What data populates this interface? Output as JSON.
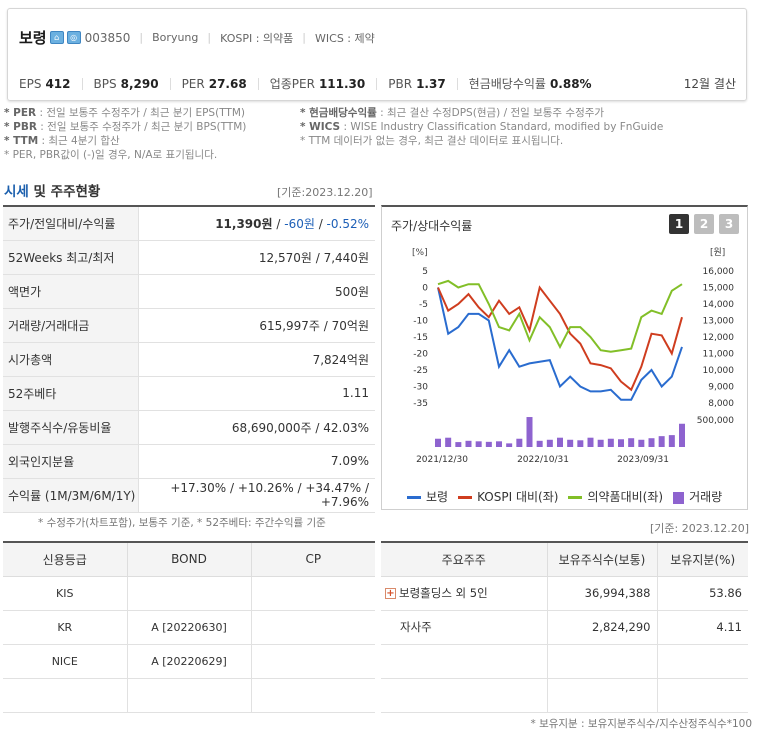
{
  "company": {
    "name": "보령",
    "code": "003850",
    "eng_name": "Boryung",
    "market": "KOSPI : 의약품",
    "wics": "WICS : 제약"
  },
  "metrics": [
    {
      "key": "EPS",
      "value": "412"
    },
    {
      "key": "BPS",
      "value": "8,290"
    },
    {
      "key": "PER",
      "value": "27.68"
    },
    {
      "key": "업종PER",
      "value": "111.30"
    },
    {
      "key": "PBR",
      "value": "1.37"
    },
    {
      "key": "현금배당수익률",
      "value": "0.88%"
    }
  ],
  "settlement": "12월 결산",
  "notes_left": [
    {
      "b": "* PER",
      "t": ": 전일 보통주 수정주가 / 최근 분기 EPS(TTM)"
    },
    {
      "b": "* PBR",
      "t": ": 전일 보통주 수정주가 / 최근 분기 BPS(TTM)"
    },
    {
      "b": "* TTM",
      "t": ": 최근 4분기 합산"
    },
    {
      "b": "",
      "t": "* PER, PBR값이 (-)일 경우, N/A로 표기됩니다."
    }
  ],
  "notes_right": [
    {
      "b": "* 현금배당수익률",
      "t": ": 최근 결산 수정DPS(현금) / 전일 보통주 수정주가"
    },
    {
      "b": "* WICS",
      "t": ": WISE Industry Classification Standard, modified by FnGuide"
    },
    {
      "b": "",
      "t": "* TTM 데이터가 없는 경우, 최근 결산 데이터로 표시됩니다."
    }
  ],
  "section": {
    "title_a": "시세",
    "title_b": " 및 주주현황",
    "asof": "[기준:2023.12.20]"
  },
  "quote": {
    "price_label": "주가/전일대비/수익률",
    "price": "11,390원",
    "diff": "-60원",
    "rate": "-0.52%",
    "rows": [
      {
        "label": "52Weeks 최고/최저",
        "value": "12,570원 / 7,440원"
      },
      {
        "label": "액면가",
        "value": "500원"
      },
      {
        "label": "거래량/거래대금",
        "value": "615,997주 / 70억원"
      },
      {
        "label": "시가총액",
        "value": "7,824억원"
      },
      {
        "label": "52주베타",
        "value": "1.11"
      },
      {
        "label": "발행주식수/유동비율",
        "value": "68,690,000주 / 42.03%"
      },
      {
        "label": "외국인지분율",
        "value": "7.09%"
      }
    ],
    "returns_label": "수익률 (1M/3M/6M/1Y)",
    "returns": [
      "+17.30%",
      "+10.26%",
      "+34.47%",
      "+7.96%"
    ],
    "note": "* 수정주가(차트포함), 보통주 기준, * 52주베타: 주간수익률 기준"
  },
  "chart": {
    "title": "주가/상대수익률",
    "tabs": [
      "1",
      "2",
      "3"
    ],
    "legend": [
      "보령",
      "KOSPI 대비(좌)",
      "의약품대비(좌)",
      "거래량"
    ]
  },
  "chart_data": {
    "type": "line",
    "left_unit": "[%]",
    "right_unit": "[원]",
    "left_ticks": [
      "5",
      "0",
      "-5",
      "-10",
      "-15",
      "-20",
      "-25",
      "-30",
      "-35"
    ],
    "right_ticks": [
      "16,000",
      "15,000",
      "14,000",
      "13,000",
      "12,000",
      "11,000",
      "10,000",
      "9,000",
      "8,000"
    ],
    "volume_ticks": [
      "500,000"
    ],
    "x_labels": [
      "2021/12/30",
      "2022/10/31",
      "2023/09/31"
    ],
    "colors": {
      "boryung": "#2a6ccf",
      "kospi": "#cf3d1f",
      "pharma": "#82bf28",
      "volume": "#8e63cf"
    },
    "series": [
      {
        "name": "보령",
        "values": [
          0,
          -14,
          -12,
          -8,
          -8,
          -10,
          -24,
          -19,
          -24,
          -23,
          -22.5,
          -22,
          -30,
          -27,
          -30,
          -31.5,
          -31.5,
          -31,
          -34,
          -34,
          -28,
          -25,
          -30,
          -27,
          -18
        ]
      },
      {
        "name": "KOSPI 대비(좌)",
        "values": [
          0,
          -7,
          -5,
          -2,
          -6,
          -9,
          -4,
          -8,
          -6,
          -13,
          0,
          -4,
          -8,
          -14,
          -17,
          -23,
          -23.5,
          -24.5,
          -28.5,
          -31,
          -24,
          -14,
          -14.5,
          -20,
          -9
        ]
      },
      {
        "name": "의약품대비(좌)",
        "values": [
          1,
          2,
          0,
          1,
          1,
          -5,
          -12,
          -13,
          -8,
          -16,
          -9,
          -12,
          -18,
          -12,
          -12,
          -15,
          -19,
          -19.5,
          -19,
          -18.5,
          -9,
          -7,
          -8,
          -1,
          1
        ]
      },
      {
        "name": "거래량",
        "values": [
          160000,
          180000,
          95000,
          120000,
          110000,
          100000,
          110000,
          70000,
          160000,
          580000,
          120000,
          140000,
          180000,
          140000,
          130000,
          180000,
          140000,
          160000,
          150000,
          170000,
          140000,
          170000,
          210000,
          230000,
          450000
        ]
      }
    ],
    "ylim_left": [
      -35,
      5
    ],
    "ylim_volume": [
      0,
      600000
    ]
  },
  "credit": {
    "headers": [
      "신용등급",
      "BOND",
      "CP"
    ],
    "rows": [
      [
        "KIS",
        "",
        ""
      ],
      [
        "KR",
        "A  [20220630]",
        ""
      ],
      [
        "NICE",
        "A  [20220629]",
        ""
      ],
      [
        "",
        "",
        ""
      ]
    ]
  },
  "holders": {
    "asof": "[기준: 2023.12.20]",
    "headers": [
      "주요주주",
      "보유주식수(보통)",
      "보유지분(%)"
    ],
    "rows": [
      {
        "name": "보령홀딩스 외 5인",
        "shares": "36,994,388",
        "pct": "53.86",
        "expand": true
      },
      {
        "name": "자사주",
        "shares": "2,824,290",
        "pct": "4.11",
        "expand": false
      },
      {
        "name": "",
        "shares": "",
        "pct": "",
        "expand": false
      },
      {
        "name": "",
        "shares": "",
        "pct": "",
        "expand": false
      }
    ],
    "footnote": "* 보유지분 : 보유지분주식수/지수산정주식수*100"
  }
}
